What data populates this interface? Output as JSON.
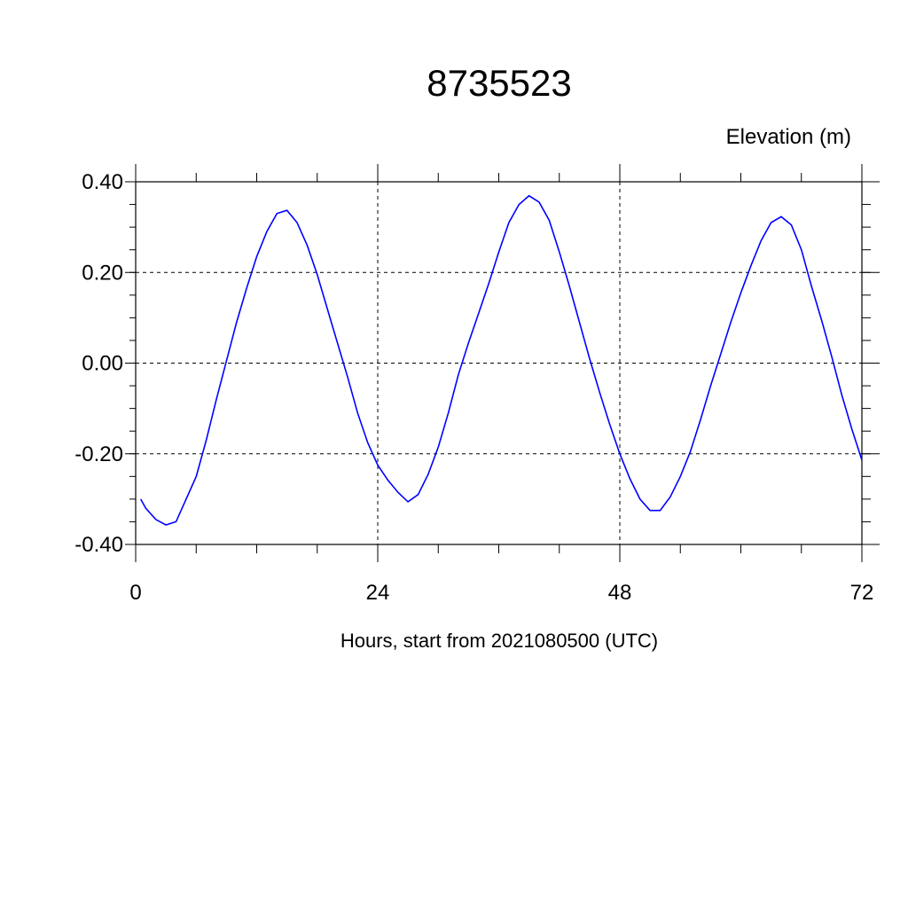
{
  "chart_data": {
    "type": "line",
    "title": "8735523",
    "ylabel": "Elevation (m)",
    "xlabel": "Hours, start from 2021080500 (UTC)",
    "xlim": [
      0,
      72
    ],
    "ylim": [
      -0.4,
      0.4
    ],
    "xticks": [
      0,
      24,
      48,
      72
    ],
    "xtick_labels": [
      "0",
      "24",
      "48",
      "72"
    ],
    "yticks": [
      0.4,
      0.2,
      0.0,
      -0.2,
      -0.4
    ],
    "ytick_labels": [
      "0.40",
      "0.20",
      "0.00",
      "-0.20",
      "-0.40"
    ],
    "grid": true,
    "line_color": "#0000ff",
    "series": [
      {
        "x": [
          0.5,
          1,
          2,
          3,
          4,
          5,
          6,
          7,
          8,
          9,
          10,
          11,
          12,
          13,
          14,
          15,
          16,
          17,
          18,
          19,
          20,
          21,
          22,
          23,
          24,
          25,
          26,
          27,
          28,
          29,
          30,
          31,
          32,
          33,
          34,
          35,
          36,
          37,
          38,
          39,
          40,
          41,
          42,
          43,
          44,
          45,
          46,
          47,
          48,
          49,
          50,
          51,
          52,
          53,
          54,
          55,
          56,
          57,
          58,
          59,
          60,
          61,
          62,
          63,
          64,
          65,
          66,
          67,
          68,
          69,
          70,
          71,
          72
        ],
        "y": [
          -0.3,
          -0.32,
          -0.345,
          -0.357,
          -0.35,
          -0.3,
          -0.25,
          -0.17,
          -0.08,
          0.005,
          0.09,
          0.165,
          0.235,
          0.29,
          0.33,
          0.337,
          0.31,
          0.26,
          0.195,
          0.12,
          0.045,
          -0.03,
          -0.11,
          -0.175,
          -0.225,
          -0.258,
          -0.285,
          -0.306,
          -0.29,
          -0.245,
          -0.185,
          -0.11,
          -0.025,
          0.045,
          0.11,
          0.175,
          0.245,
          0.31,
          0.35,
          0.369,
          0.355,
          0.315,
          0.245,
          0.17,
          0.09,
          0.01,
          -0.065,
          -0.135,
          -0.2,
          -0.255,
          -0.3,
          -0.325,
          -0.325,
          -0.295,
          -0.25,
          -0.195,
          -0.125,
          -0.05,
          0.02,
          0.09,
          0.155,
          0.215,
          0.27,
          0.31,
          0.323,
          0.305,
          0.25,
          0.17,
          0.095,
          0.015,
          -0.07,
          -0.145,
          -0.214
        ]
      }
    ]
  }
}
